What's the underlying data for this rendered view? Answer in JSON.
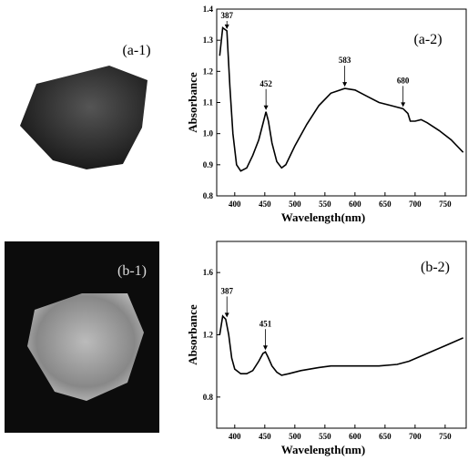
{
  "photo_labels": [
    "(a-1)",
    "(b-1)"
  ],
  "chart_data": [
    {
      "type": "line",
      "panel_label": "(a-2)",
      "x_label": "Wavelength(nm)",
      "y_label": "Absorbance",
      "x": [
        375,
        380,
        387,
        392,
        397,
        403,
        410,
        420,
        430,
        440,
        448,
        452,
        456,
        462,
        470,
        478,
        485,
        500,
        520,
        540,
        560,
        583,
        600,
        620,
        640,
        660,
        680,
        688,
        692,
        700,
        710,
        720,
        740,
        760,
        780
      ],
      "series": [
        {
          "color": "#000000",
          "values": [
            1.25,
            1.34,
            1.33,
            1.15,
            1.0,
            0.9,
            0.88,
            0.89,
            0.93,
            0.98,
            1.04,
            1.07,
            1.04,
            0.97,
            0.91,
            0.89,
            0.9,
            0.96,
            1.03,
            1.09,
            1.13,
            1.145,
            1.14,
            1.12,
            1.1,
            1.09,
            1.08,
            1.065,
            1.04,
            1.04,
            1.045,
            1.035,
            1.01,
            0.98,
            0.94
          ]
        }
      ],
      "peaks": [
        387,
        452,
        583,
        680
      ],
      "xlim": [
        370,
        785
      ],
      "xticks": [
        400,
        450,
        500,
        550,
        600,
        650,
        700,
        750
      ],
      "ylim": [
        0.8,
        1.4
      ],
      "yticks": [
        0.8,
        0.9,
        {
          "value": 1,
          "label": "1.0"
        },
        1.1,
        1.2,
        1.3,
        1.4
      ]
    },
    {
      "type": "line",
      "panel_label": "(b-2)",
      "x_label": "Wavelength(nm)",
      "y_label": "Absorbance",
      "x": [
        375,
        380,
        385,
        390,
        395,
        400,
        410,
        420,
        430,
        440,
        447,
        451,
        455,
        462,
        470,
        478,
        490,
        510,
        540,
        560,
        600,
        640,
        670,
        690,
        720,
        750,
        780
      ],
      "series": [
        {
          "color": "#000000",
          "values": [
            1.2,
            1.32,
            1.3,
            1.2,
            1.05,
            0.98,
            0.95,
            0.95,
            0.97,
            1.03,
            1.08,
            1.09,
            1.06,
            1.0,
            0.96,
            0.94,
            0.95,
            0.97,
            0.99,
            1.0,
            1.0,
            1.0,
            1.01,
            1.03,
            1.08,
            1.13,
            1.18
          ]
        }
      ],
      "peaks": [
        387,
        451
      ],
      "xlim": [
        370,
        785
      ],
      "xticks": [
        400,
        450,
        500,
        550,
        600,
        650,
        700,
        750
      ],
      "ylim": [
        0.6,
        1.8
      ],
      "yticks": [
        0.8,
        1.2,
        1.6
      ]
    }
  ]
}
